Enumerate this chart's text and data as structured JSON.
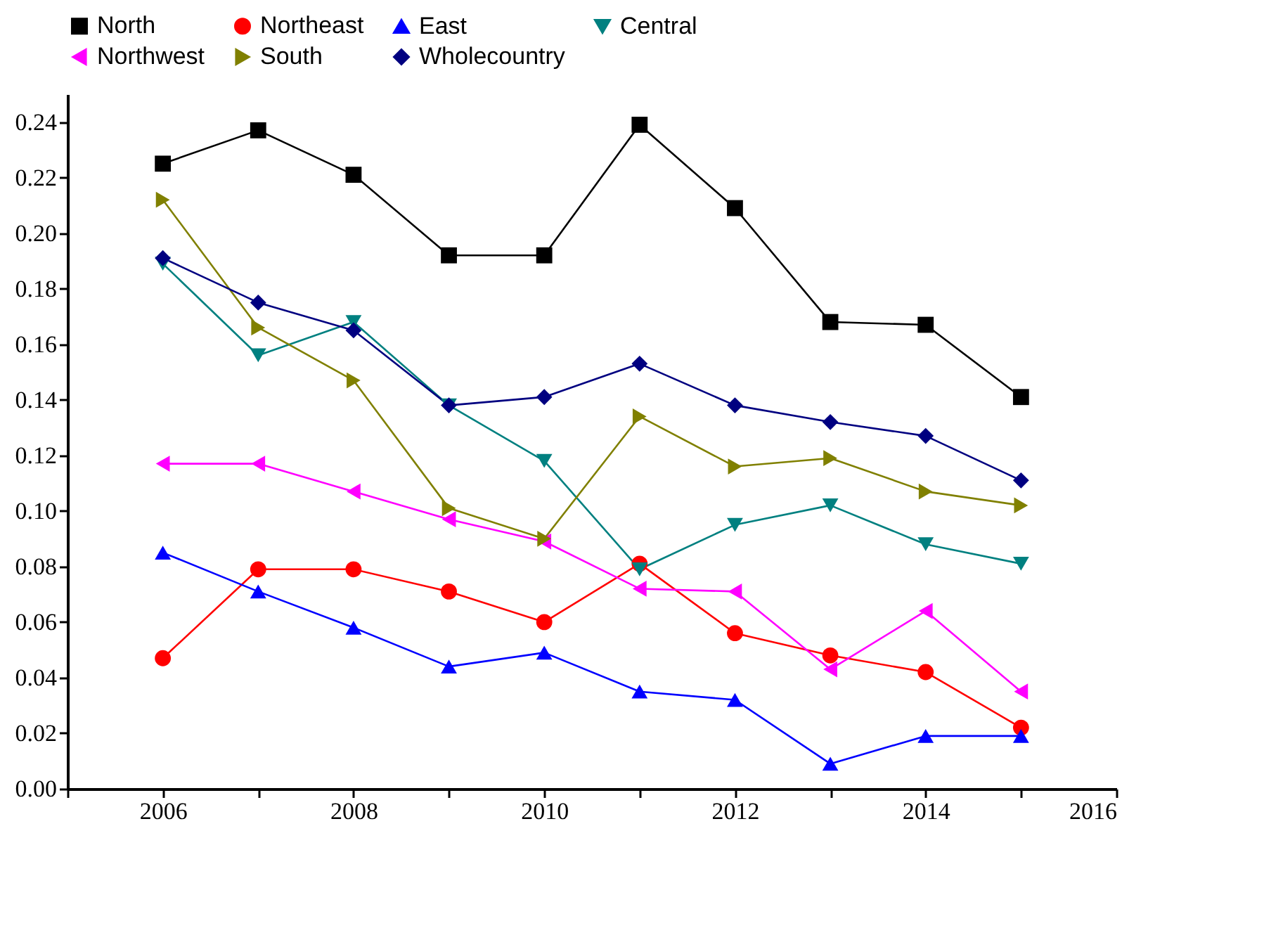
{
  "chart_data": {
    "type": "line",
    "x": [
      2006,
      2007,
      2008,
      2009,
      2010,
      2011,
      2012,
      2013,
      2014,
      2015
    ],
    "xlim": [
      2005,
      2016
    ],
    "xticks": [
      {
        "value": 2005,
        "label": null
      },
      2006,
      {
        "value": 2007,
        "label": null
      },
      2008,
      {
        "value": 2009,
        "label": null
      },
      2010,
      {
        "value": 2011,
        "label": null
      },
      2012,
      {
        "value": 2013,
        "label": null
      },
      2014,
      {
        "value": 2015,
        "label": null
      },
      2016
    ],
    "ylim": [
      0,
      0.25
    ],
    "yticks": [
      {
        "value": 0,
        "label": "0.00"
      },
      0.02,
      0.04,
      0.06,
      0.08,
      {
        "value": 0.1,
        "label": "0.10"
      },
      0.12,
      0.14,
      0.16,
      0.18,
      {
        "value": 0.2,
        "label": "0.20"
      },
      0.22,
      0.24
    ],
    "line_style": "solid",
    "legend": "top",
    "grid": false,
    "series": [
      {
        "name": "North",
        "color": "#000000",
        "marker": "square",
        "values": [
          0.225,
          0.237,
          0.221,
          0.192,
          0.192,
          0.239,
          0.209,
          0.168,
          0.167,
          0.141
        ]
      },
      {
        "name": "Northeast",
        "color": "#ff0000",
        "marker": "circle",
        "values": [
          0.047,
          0.079,
          0.079,
          0.071,
          0.06,
          0.081,
          0.056,
          0.048,
          0.042,
          0.022
        ]
      },
      {
        "name": "East",
        "color": "#0000ff",
        "marker": "triangle-up",
        "values": [
          0.085,
          0.071,
          0.058,
          0.044,
          0.049,
          0.035,
          0.032,
          0.009,
          0.019,
          0.019
        ]
      },
      {
        "name": "Central",
        "color": "#008080",
        "marker": "triangle-down",
        "values": [
          0.189,
          0.156,
          0.168,
          0.138,
          0.118,
          0.079,
          0.095,
          0.102,
          0.088,
          0.081
        ]
      },
      {
        "name": "Northwest",
        "color": "#ff00ff",
        "marker": "triangle-left",
        "values": [
          0.117,
          0.117,
          0.107,
          0.097,
          0.089,
          0.072,
          0.071,
          0.043,
          0.064,
          0.035
        ]
      },
      {
        "name": "South",
        "color": "#808000",
        "marker": "triangle-right",
        "values": [
          0.212,
          0.166,
          0.147,
          0.101,
          0.09,
          0.134,
          0.116,
          0.119,
          0.107,
          0.102
        ]
      },
      {
        "name": "Wholecountry",
        "color": "#000080",
        "marker": "diamond",
        "values": [
          0.191,
          0.175,
          0.165,
          0.138,
          0.141,
          0.153,
          0.138,
          0.132,
          0.127,
          0.111
        ]
      }
    ]
  }
}
